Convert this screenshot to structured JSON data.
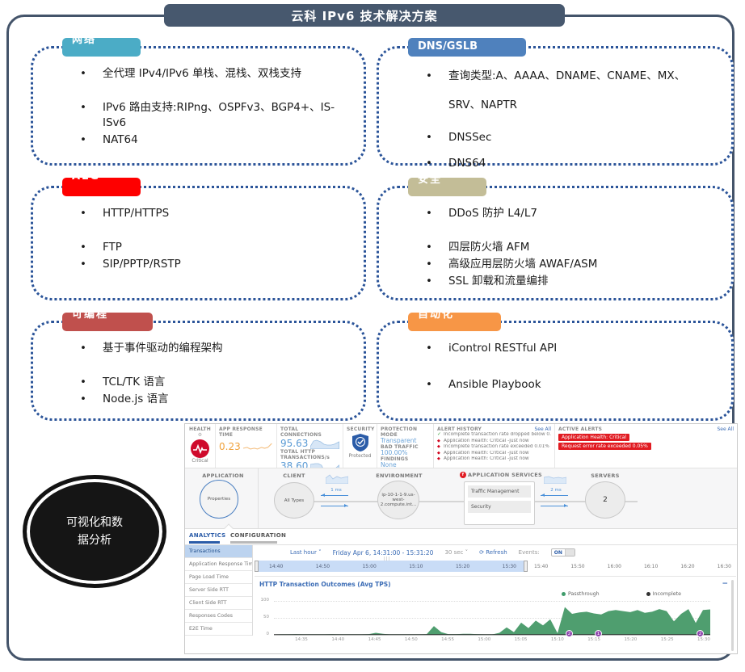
{
  "title": "云科 IPv6 技术解决方案",
  "colors": {
    "slate": "#47586E",
    "dotted_border": "#2b5499",
    "box_labels": [
      "#4BACC6",
      "#4F81BD",
      "#FE0000",
      "#C3BD97",
      "#C0504D",
      "#F79646"
    ],
    "accent_blue": "#3b6cb5",
    "alert_red": "#e11b22",
    "chart_green": "#4f9e6f"
  },
  "boxes": [
    {
      "label": "网络",
      "items": [
        "全代理 IPv4/IPv6 单栈、混栈、双栈支持",
        "IPv6 路由支持:RIPng、OSPFv3、BGP4+、IS-ISv6",
        "NAT64"
      ]
    },
    {
      "label": "DNS/GSLB",
      "items": [
        "查询类型:A、AAAA、DNAME、CNAME、MX、SRV、NAPTR",
        "DNSSec",
        "DNS64"
      ]
    },
    {
      "label": "ALG",
      "items": [
        "HTTP/HTTPS",
        "FTP",
        "SIP/PPTP/RSTP"
      ]
    },
    {
      "label": "安全",
      "items": [
        "DDoS 防护 L4/L7",
        "四层防火墙 AFM",
        "高级应用层防火墙 AWAF/ASM",
        "SSL 卸载和流量编排"
      ]
    },
    {
      "label": "可编程",
      "items": [
        "基于事件驱动的编程架构",
        "TCL/TK 语言",
        "Node.js 语言"
      ]
    },
    {
      "label": "自动化",
      "items": [
        "iControl RESTful API",
        "Ansible Playbook"
      ]
    }
  ],
  "ellipse_text": "可视化和数据分析",
  "dashboard": {
    "health": {
      "label": "HEALTH",
      "status": "Critical"
    },
    "app_response": {
      "label": "APP RESPONSE TIME",
      "value": "0.23"
    },
    "connections": {
      "label": "TOTAL CONNECTIONS",
      "value": "95.63"
    },
    "http_tx": {
      "label": "TOTAL HTTP TRANSACTIONS/s",
      "value": "38.60"
    },
    "security": {
      "label": "SECURITY",
      "status": "Protected"
    },
    "protection": {
      "label": "PROTECTION MODE",
      "mode": "Transparent",
      "bad_traffic_label": "BAD TRAFFIC",
      "bad_traffic": "100.00%",
      "findings_label": "FINDINGS",
      "findings": "None"
    },
    "alert_history": {
      "label": "ALERT HISTORY",
      "see_all": "See All",
      "items": [
        {
          "icon": "check",
          "text": "Incomplete transaction rate dropped below 0... just now"
        },
        {
          "icon": "diamond",
          "text": "Application Health: Critical -just now"
        },
        {
          "icon": "diamond",
          "text": "Incomplete transaction rate exceeded 0.01% -just now"
        },
        {
          "icon": "diamond",
          "text": "Application Health: Critical -just now"
        },
        {
          "icon": "diamond",
          "text": "Application Health: Critical -just now"
        }
      ]
    },
    "active_alerts": {
      "label": "ACTIVE ALERTS",
      "see_all": "See All",
      "items": [
        "Application Health: Critical",
        "Request error rate exceeded 0.05%"
      ]
    },
    "topology": {
      "application_label": "APPLICATION",
      "application_node": "Properties",
      "client_label": "CLIENT",
      "client_node": "All Types",
      "latency_client": "1 ms",
      "environment_label": "ENVIRONMENT",
      "environment_node": "ip-10-1-1-9.us-west-2.compute.int...",
      "services_label": "APPLICATION SERVICES",
      "services": [
        "Traffic Management",
        "Security"
      ],
      "latency_server": "2 ms",
      "servers_label": "SERVERS",
      "servers_count": "2"
    },
    "tabs": [
      "ANALYTICS",
      "CONFIGURATION"
    ],
    "sidebar": [
      "Transactions",
      "Application Response Time",
      "Page Load Time",
      "Server Side RTT",
      "Client Side RTT",
      "Responses Codes",
      "E2E Time"
    ],
    "toolbar": {
      "range": "Last hour",
      "date": "Friday Apr 6, 14:31:00 - 15:31:20",
      "interval": "30 sec",
      "refresh": "Refresh",
      "events_label": "Events:",
      "events_state": "ON"
    },
    "timeline": {
      "selected_ticks": [
        "14:40",
        "14:50",
        "15:00",
        "15:10",
        "15:20",
        "15:30"
      ],
      "right_ticks": [
        "15:40",
        "15:50",
        "16:00",
        "16:10",
        "16:20",
        "16:30"
      ]
    }
  },
  "chart_data": {
    "type": "area",
    "title": "HTTP Transaction Outcomes (Avg TPS)",
    "x_start": "14:31",
    "x_end": "15:31:20",
    "ylim": [
      0,
      100
    ],
    "yticks": [
      "100",
      "50",
      "0"
    ],
    "x_ticks": [
      "14:35",
      "14:40",
      "14:45",
      "14:50",
      "14:55",
      "15:00",
      "15:05",
      "15:10",
      "15:15",
      "15:20",
      "15:25",
      "15:30"
    ],
    "legend": [
      {
        "name": "Passthrough",
        "color": "#3f9c6b"
      },
      {
        "name": "Incomplete",
        "color": "#333333"
      }
    ],
    "grid": true,
    "legend_position": "top-right",
    "series": [
      {
        "name": "Passthrough",
        "color": "#4f9e6f",
        "values": [
          0,
          1,
          1,
          2,
          1,
          1,
          1,
          1,
          2,
          1,
          1,
          1,
          1,
          2,
          6,
          3,
          1,
          1,
          1,
          1,
          1,
          2,
          26,
          8,
          2,
          2,
          3,
          3,
          2,
          1,
          1,
          6,
          22,
          8,
          36,
          20,
          42,
          28,
          46,
          5,
          82,
          62,
          66,
          68,
          63,
          60,
          70,
          73,
          70,
          67,
          73,
          65,
          68,
          76,
          70,
          40,
          62,
          76,
          35,
          73,
          75
        ]
      },
      {
        "name": "Incomplete",
        "color": "#333333",
        "values": [
          0,
          0,
          0,
          0,
          0,
          0,
          0,
          0,
          0,
          0,
          0,
          0,
          0,
          0,
          0,
          0,
          0,
          0,
          0,
          0,
          0,
          0,
          0,
          0,
          0,
          0,
          0,
          0,
          0,
          0,
          0,
          0,
          0,
          0,
          0,
          0,
          0,
          0,
          0,
          0,
          0,
          0,
          0,
          0,
          0,
          0,
          0,
          0,
          0,
          0,
          0,
          0,
          0,
          0,
          0,
          0,
          0,
          0,
          0,
          0,
          0
        ]
      }
    ],
    "event_markers": [
      {
        "label": "2",
        "time": "15:12"
      },
      {
        "label": "1",
        "time": "15:16"
      },
      {
        "label": "2",
        "time": "15:30"
      }
    ]
  }
}
